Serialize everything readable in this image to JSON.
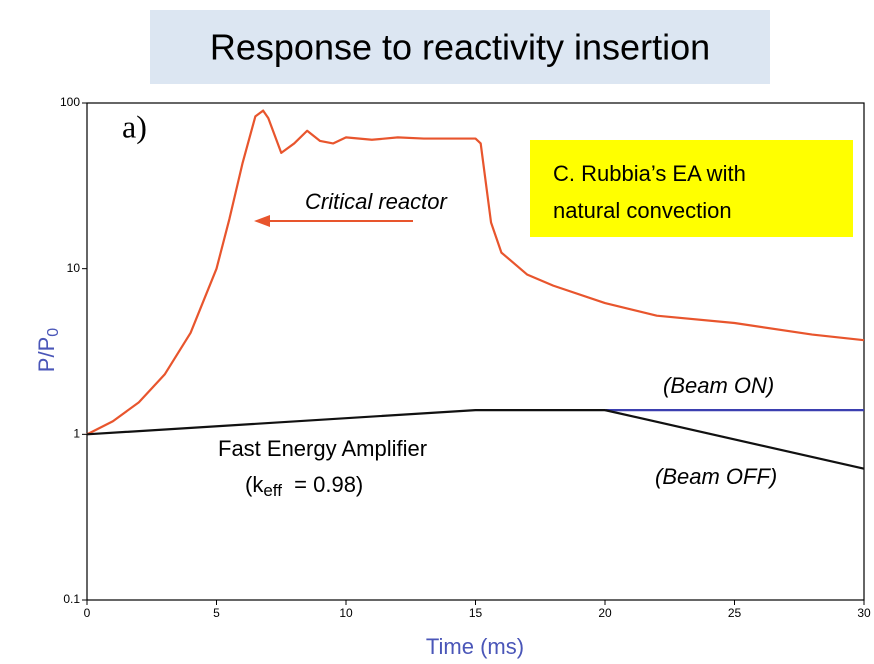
{
  "chart_data": {
    "type": "line",
    "title": "Response to reactivity insertion",
    "xlabel": "Time (ms)",
    "ylabel": [
      "P/P",
      "0"
    ],
    "log_y": true,
    "xlim": [
      0,
      30
    ],
    "ylim": [
      0.1,
      100
    ],
    "xticks": [
      0,
      5,
      10,
      15,
      20,
      25,
      30
    ],
    "yticks": [
      0.1,
      1,
      10,
      100
    ],
    "series": [
      {
        "color": "#e8552d",
        "x": [
          0,
          1,
          2,
          3,
          4,
          5,
          5.5,
          6,
          6.5,
          6.8,
          7,
          7.5,
          8,
          8.5,
          9,
          9.5,
          10,
          11,
          12,
          13,
          15,
          15.2,
          15.6,
          16,
          17,
          18,
          20,
          22,
          25,
          28,
          30
        ],
        "values": [
          1,
          1.2,
          1.56,
          2.3,
          4.1,
          10,
          20,
          43,
          83,
          90,
          81,
          50,
          57,
          68,
          59,
          57,
          62,
          60,
          62,
          61,
          61,
          57,
          19,
          12.5,
          9.2,
          7.9,
          6.2,
          5.2,
          4.7,
          4.0,
          3.7
        ]
      },
      {
        "color": "#111111",
        "x": [
          0,
          15,
          20
        ],
        "values": [
          1,
          1.4,
          1.4
        ]
      },
      {
        "color": "#3b3fb0",
        "x": [
          20,
          30
        ],
        "values": [
          1.4,
          1.4
        ]
      },
      {
        "color": "#111111",
        "x": [
          20,
          30
        ],
        "values": [
          1.4,
          0.62
        ]
      }
    ],
    "annotations": {
      "panel": "a)",
      "critical": "Critical reactor",
      "fea": "Fast Energy Amplifier",
      "keff": [
        "(k",
        "eff",
        "  = 0.98)"
      ],
      "beam_on": "(Beam ON)",
      "beam_off": "(Beam OFF)",
      "box": [
        "C. Rubbia’s EA with",
        "natural convection"
      ]
    }
  }
}
